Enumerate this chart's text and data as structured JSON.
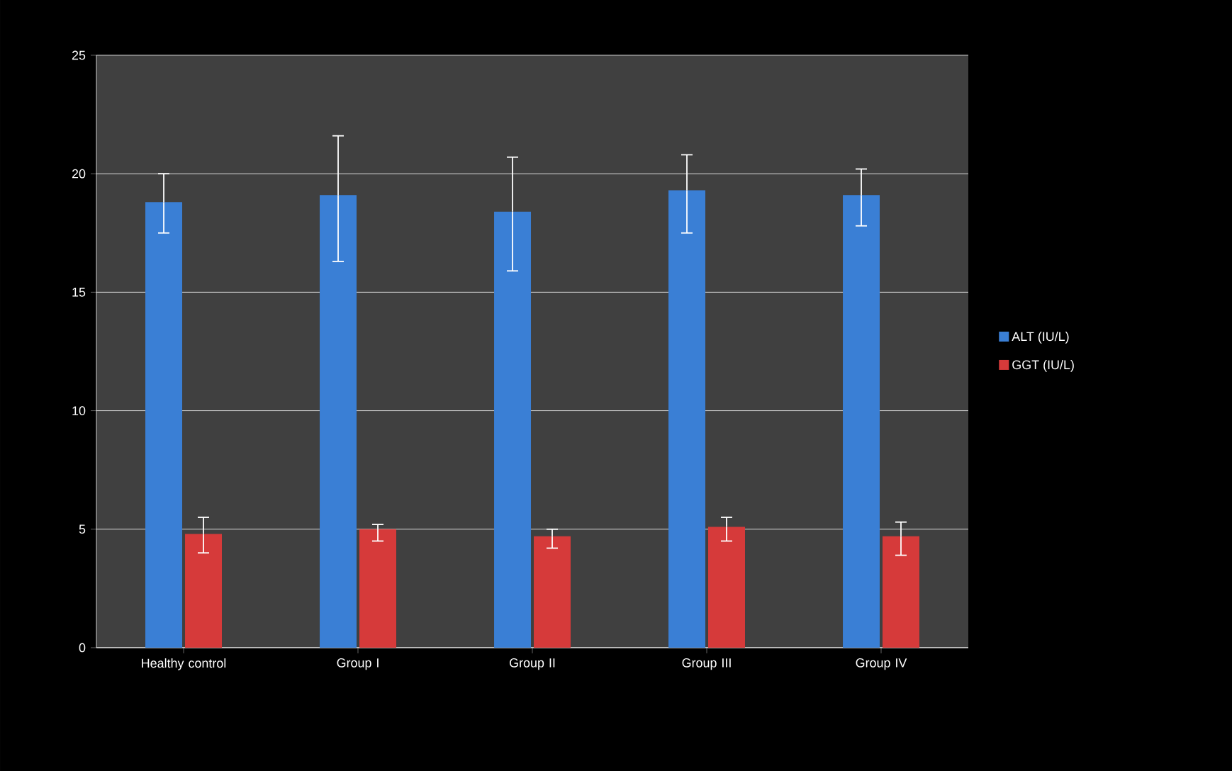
{
  "chart_data": {
    "type": "bar",
    "categories": [
      "Healthy control",
      "Group I",
      "Group II",
      "Group III",
      "Group IV"
    ],
    "series": [
      {
        "name": "ALT (IU/L)",
        "color": "#3a7fd5",
        "values": [
          18.8,
          19.1,
          18.4,
          19.3,
          19.1
        ],
        "errors": [
          [
            17.5,
            20.0
          ],
          [
            16.3,
            21.6
          ],
          [
            15.9,
            20.7
          ],
          [
            17.5,
            20.8
          ],
          [
            17.8,
            20.2
          ]
        ]
      },
      {
        "name": "GGT (IU/L)",
        "color": "#d63a3a",
        "values": [
          4.8,
          5.0,
          4.7,
          5.1,
          4.7
        ],
        "errors": [
          [
            4.0,
            5.5
          ],
          [
            4.5,
            5.2
          ],
          [
            4.2,
            5.0
          ],
          [
            4.5,
            5.5
          ],
          [
            3.9,
            5.3
          ]
        ]
      }
    ],
    "ylim": [
      0,
      25
    ],
    "yticks": [
      0,
      5,
      10,
      15,
      20,
      25
    ],
    "grid": "y",
    "legend": "right"
  }
}
